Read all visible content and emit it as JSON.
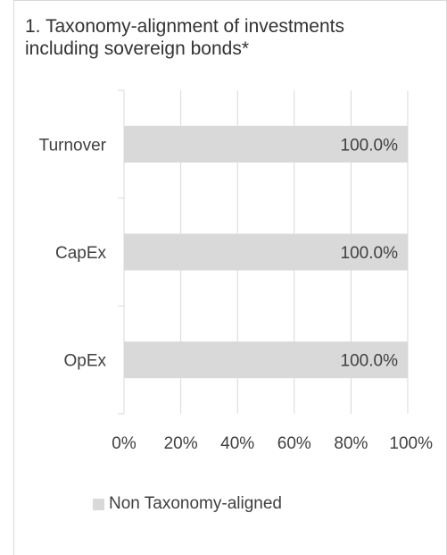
{
  "chart_data": {
    "type": "bar",
    "orientation": "horizontal",
    "stacked": true,
    "title": "1. Taxonomy-alignment of investments including sovereign bonds*",
    "categories": [
      "Turnover",
      "CapEx",
      "OpEx"
    ],
    "series": [
      {
        "name": "Non Taxonomy-aligned",
        "values": [
          100.0,
          100.0,
          100.0
        ],
        "labels": [
          "100.0%",
          "100.0%",
          "100.0%"
        ],
        "color": "#d9d9d9"
      }
    ],
    "xlim": [
      0,
      100
    ],
    "xticks": [
      "0%",
      "20%",
      "40%",
      "60%",
      "80%",
      "100%"
    ],
    "grid": true,
    "legend_position": "bottom"
  }
}
